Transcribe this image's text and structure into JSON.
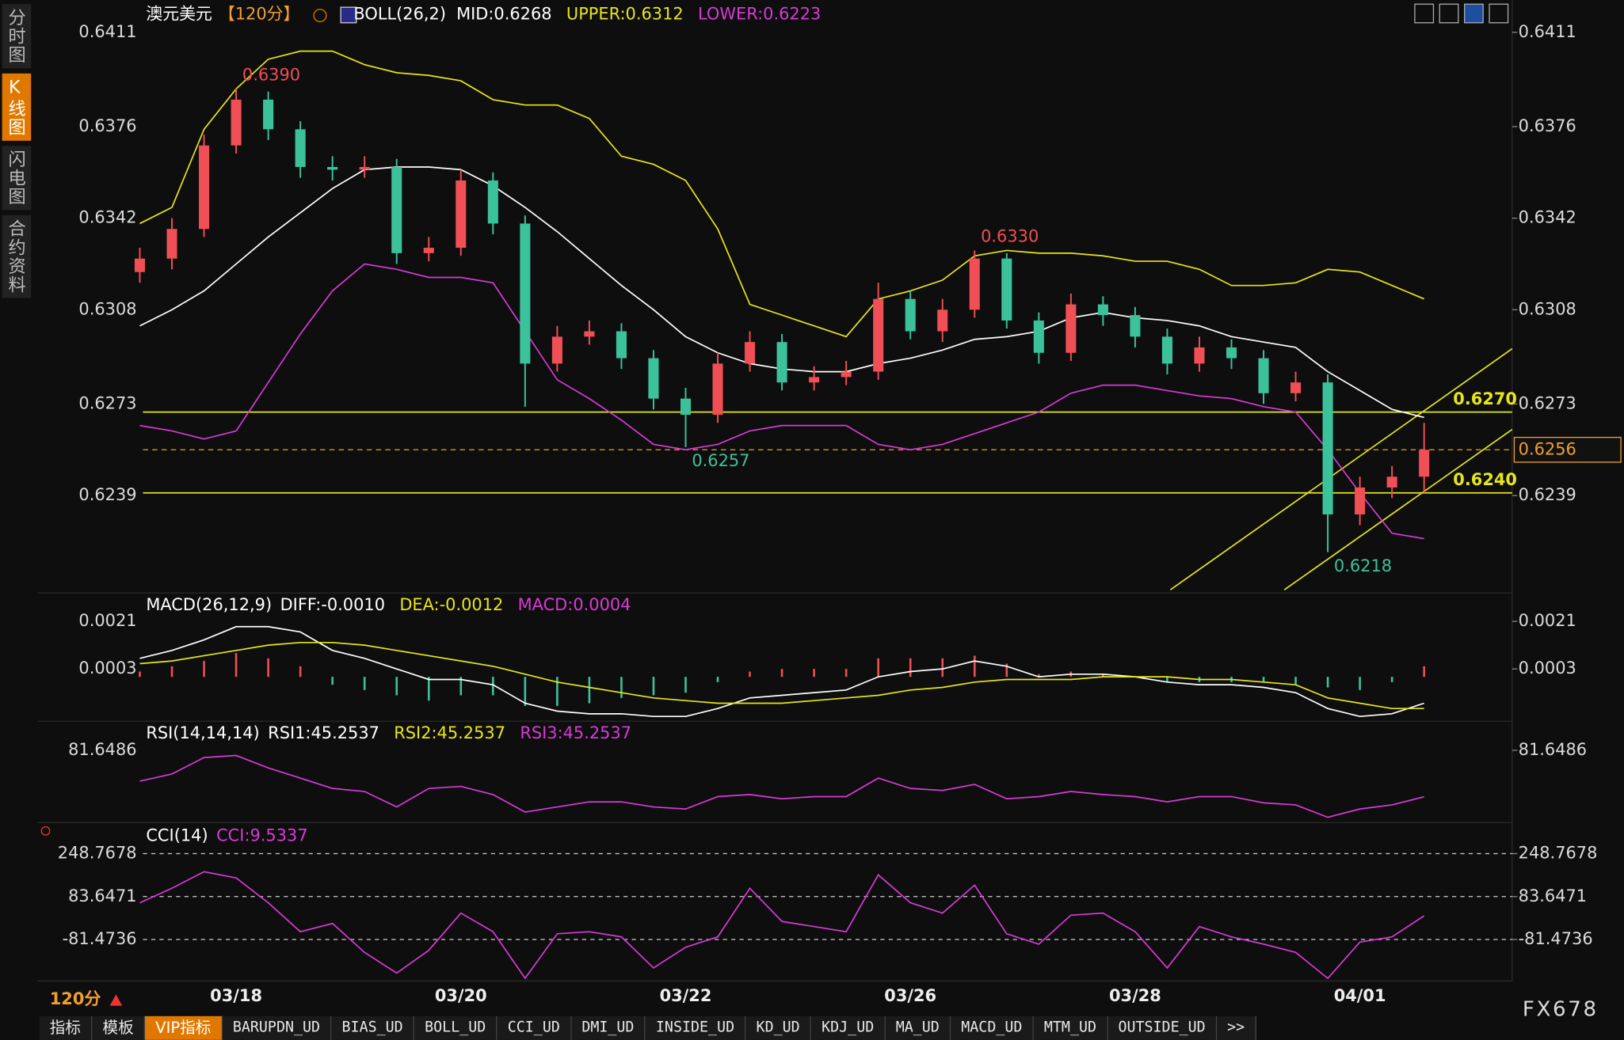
{
  "sidebar": [
    {
      "label": "分时图",
      "active": false
    },
    {
      "label": "K线图",
      "active": true
    },
    {
      "label": "闪电图",
      "active": false
    },
    {
      "label": "合约资料",
      "active": false
    }
  ],
  "period": "120分",
  "brand": "FX678",
  "toolbar": [
    {
      "label": "指标",
      "active": false
    },
    {
      "label": "模板",
      "active": false
    },
    {
      "label": "VIP指标",
      "active": true
    },
    {
      "label": "BARUPDN_UD",
      "active": false
    },
    {
      "label": "BIAS_UD",
      "active": false
    },
    {
      "label": "BOLL_UD",
      "active": false
    },
    {
      "label": "CCI_UD",
      "active": false
    },
    {
      "label": "DMI_UD",
      "active": false
    },
    {
      "label": "INSIDE_UD",
      "active": false
    },
    {
      "label": "KD_UD",
      "active": false
    },
    {
      "label": "KDJ_UD",
      "active": false
    },
    {
      "label": "MA_UD",
      "active": false
    },
    {
      "label": "MACD_UD",
      "active": false
    },
    {
      "label": "MTM_UD",
      "active": false
    },
    {
      "label": "OUTSIDE_UD",
      "active": false
    },
    {
      "label": ">>",
      "active": false
    }
  ],
  "chart_data": [
    {
      "type": "candlestick",
      "title": "澳元美元",
      "period": "【120分】",
      "indicator": "BOLL(26,2)",
      "categories": [
        null,
        null,
        null,
        "03/18",
        null,
        null,
        null,
        null,
        null,
        null,
        "03/20",
        null,
        null,
        null,
        null,
        null,
        null,
        "03/22",
        null,
        null,
        null,
        null,
        null,
        null,
        "03/26",
        null,
        null,
        null,
        null,
        null,
        null,
        "03/28",
        null,
        null,
        null,
        null,
        null,
        null,
        "04/01",
        null,
        null
      ],
      "open": [
        0.6322,
        0.6327,
        0.6338,
        0.6369,
        0.6386,
        0.6375,
        0.6361,
        0.636,
        0.6361,
        0.6329,
        0.6331,
        0.6356,
        0.634,
        0.6288,
        0.6298,
        0.63,
        0.629,
        0.6275,
        0.6269,
        0.6288,
        0.6296,
        0.6281,
        0.6283,
        0.6285,
        0.6312,
        0.63,
        0.6308,
        0.6327,
        0.6304,
        0.6292,
        0.631,
        0.6306,
        0.6298,
        0.6288,
        0.6294,
        0.629,
        0.6277,
        0.6281,
        0.6232,
        0.6242,
        0.6246
      ],
      "high": [
        0.6331,
        0.6342,
        0.6373,
        0.639,
        0.6389,
        0.6378,
        0.6365,
        0.6365,
        0.6364,
        0.6335,
        0.636,
        0.6359,
        0.6343,
        0.6302,
        0.6304,
        0.6303,
        0.6293,
        0.6279,
        0.6292,
        0.63,
        0.6299,
        0.6287,
        0.6289,
        0.6318,
        0.6315,
        0.6312,
        0.633,
        0.6329,
        0.6307,
        0.6314,
        0.6313,
        0.6309,
        0.6301,
        0.6298,
        0.6297,
        0.6293,
        0.6285,
        0.6284,
        0.6246,
        0.625,
        0.6266
      ],
      "low": [
        0.6318,
        0.6323,
        0.6335,
        0.6366,
        0.6371,
        0.6357,
        0.6356,
        0.6357,
        0.6325,
        0.6326,
        0.6328,
        0.6336,
        0.6272,
        0.6285,
        0.6295,
        0.6286,
        0.6271,
        0.6257,
        0.6266,
        0.6285,
        0.6278,
        0.6278,
        0.628,
        0.6282,
        0.6297,
        0.6296,
        0.6305,
        0.6301,
        0.6288,
        0.6289,
        0.6302,
        0.6294,
        0.6284,
        0.6285,
        0.6286,
        0.6273,
        0.6274,
        0.6218,
        0.6228,
        0.6238,
        0.624
      ],
      "close": [
        0.6327,
        0.6338,
        0.6369,
        0.6386,
        0.6375,
        0.6361,
        0.636,
        0.6361,
        0.6329,
        0.6331,
        0.6356,
        0.634,
        0.6288,
        0.6298,
        0.63,
        0.629,
        0.6275,
        0.6269,
        0.6288,
        0.6296,
        0.6281,
        0.6283,
        0.6285,
        0.6312,
        0.63,
        0.6308,
        0.6327,
        0.6304,
        0.6292,
        0.631,
        0.6306,
        0.6298,
        0.6288,
        0.6294,
        0.629,
        0.6277,
        0.6281,
        0.6232,
        0.6242,
        0.6246,
        0.6256
      ],
      "up_color": "#ef4f55",
      "down_color": "#3cc29b",
      "series": [
        {
          "name": "MID:0.6268",
          "color": "#ffffff",
          "values": [
            0.6302,
            0.6308,
            0.6315,
            0.6325,
            0.6335,
            0.6344,
            0.6353,
            0.636,
            0.6361,
            0.6361,
            0.636,
            0.6354,
            0.6346,
            0.6337,
            0.6327,
            0.6317,
            0.6308,
            0.6298,
            0.6292,
            0.6288,
            0.6286,
            0.6285,
            0.6285,
            0.6288,
            0.629,
            0.6293,
            0.6297,
            0.6298,
            0.63,
            0.6305,
            0.6307,
            0.6305,
            0.6304,
            0.6302,
            0.6298,
            0.6296,
            0.6294,
            0.6285,
            0.6278,
            0.6271,
            0.6268
          ]
        },
        {
          "name": "UPPER:0.6312",
          "color": "#e6e61a",
          "values": [
            0.634,
            0.6346,
            0.6375,
            0.639,
            0.6401,
            0.6404,
            0.6404,
            0.6399,
            0.6396,
            0.6395,
            0.6393,
            0.6386,
            0.6384,
            0.6384,
            0.6379,
            0.6365,
            0.6362,
            0.6356,
            0.6338,
            0.631,
            0.6306,
            0.6302,
            0.6298,
            0.6312,
            0.6315,
            0.6319,
            0.6328,
            0.633,
            0.6329,
            0.6329,
            0.6328,
            0.6326,
            0.6326,
            0.6323,
            0.6317,
            0.6317,
            0.6318,
            0.6323,
            0.6322,
            0.6317,
            0.6312
          ]
        },
        {
          "name": "LOWER:0.6223",
          "color": "#d63bd6",
          "values": [
            0.6265,
            0.6263,
            0.626,
            0.6263,
            0.6281,
            0.6299,
            0.6315,
            0.6325,
            0.6323,
            0.632,
            0.632,
            0.6318,
            0.63,
            0.6282,
            0.6275,
            0.6267,
            0.6258,
            0.6256,
            0.6258,
            0.6263,
            0.6265,
            0.6265,
            0.6265,
            0.6258,
            0.6256,
            0.6258,
            0.6262,
            0.6266,
            0.627,
            0.6277,
            0.628,
            0.628,
            0.6278,
            0.6276,
            0.6275,
            0.6272,
            0.627,
            0.6256,
            0.624,
            0.6225,
            0.6223
          ]
        }
      ],
      "ylim": [
        0.6204,
        0.6423
      ],
      "yticks": [
        0.6411,
        0.6376,
        0.6342,
        0.6308,
        0.6273,
        0.6239
      ],
      "grid": false,
      "levels": [
        {
          "value": 0.627,
          "label": "0.6270"
        },
        {
          "value": 0.624,
          "label": "0.6240"
        }
      ],
      "level_color": "#e6e61a",
      "last": {
        "value": 0.6256,
        "label": "0.6256"
      },
      "last_color": "#f0a030",
      "annotations": [
        {
          "value": 0.639,
          "label": "0.6390"
        },
        {
          "value": 0.633,
          "label": "0.6330"
        },
        {
          "value": 0.6257,
          "label": "0.6257"
        },
        {
          "value": 0.6218,
          "label": "0.6218"
        }
      ]
    },
    {
      "type": "macd",
      "title": "MACD(26,12,9)",
      "series": [
        {
          "name": "DIFF:-0.0010",
          "color": "#ffffff",
          "values": [
            0.0007,
            0.001,
            0.0014,
            0.0019,
            0.0019,
            0.0017,
            0.001,
            0.0007,
            0.0003,
            -0.0001,
            -0.0001,
            -0.0003,
            -0.001,
            -0.0013,
            -0.0014,
            -0.0014,
            -0.0015,
            -0.0015,
            -0.0012,
            -0.0008,
            -0.0007,
            -0.0006,
            -0.0005,
            0,
            0.0002,
            0.0003,
            0.0006,
            0.0004,
            0,
            0.0001,
            0.0001,
            0,
            -0.0002,
            -0.0003,
            -0.0003,
            -0.0004,
            -0.0006,
            -0.0012,
            -0.0015,
            -0.0014,
            -0.001
          ]
        },
        {
          "name": "DEA:-0.0012",
          "color": "#e6e61a",
          "values": [
            0.0005,
            0.0006,
            0.0008,
            0.001,
            0.0012,
            0.0013,
            0.0013,
            0.0012,
            0.001,
            0.0008,
            0.0006,
            0.0004,
            0.0001,
            -0.0002,
            -0.0004,
            -0.0006,
            -0.0008,
            -0.0009,
            -0.001,
            -0.001,
            -0.001,
            -0.0009,
            -0.0008,
            -0.0007,
            -0.0005,
            -0.0004,
            -0.0002,
            -0.0001,
            -0.0001,
            -0.0001,
            0,
            0,
            0,
            -0.0001,
            -0.0001,
            -0.0002,
            -0.0003,
            -0.0008,
            -0.001,
            -0.0012,
            -0.0012
          ]
        }
      ],
      "histogram": {
        "name": "MACD:0.0004",
        "color": "#d63bd6",
        "up_color": "#ef4f55",
        "down_color": "#3cc29b",
        "values": [
          0.0002,
          0.0004,
          0.0006,
          0.0009,
          0.0007,
          0.0004,
          -0.0003,
          -0.0005,
          -0.0007,
          -0.0009,
          -0.0007,
          -0.0007,
          -0.0011,
          -0.0011,
          -0.001,
          -0.0008,
          -0.0007,
          -0.0006,
          -0.0002,
          0.0002,
          0.0003,
          0.0003,
          0.0003,
          0.0007,
          0.0007,
          0.0007,
          0.0008,
          0.0005,
          0.0001,
          0.0002,
          0.0001,
          0,
          -0.0002,
          -0.0002,
          -0.0002,
          -0.0002,
          -0.0003,
          -0.0004,
          -0.0005,
          -0.0002,
          0.0004
        ]
      },
      "ylim": [
        -0.0018,
        0.0031
      ],
      "yticks": [
        0.0021,
        0.0003
      ],
      "grid": false
    },
    {
      "type": "line",
      "title": "RSI(14,14,14)",
      "legend": [
        {
          "label": "RSI1:45.2537",
          "color": "#ffffff"
        },
        {
          "label": "RSI2:45.2537",
          "color": "#e6e61a"
        },
        {
          "label": "RSI3:45.2537",
          "color": "#d63bd6"
        }
      ],
      "series": [
        {
          "color": "#d63bd6",
          "values": [
            57.5,
            63.1,
            76,
            77.6,
            67.9,
            59.9,
            51.8,
            49.4,
            37.3,
            51.8,
            53.4,
            47,
            33.3,
            37.3,
            41.3,
            41.3,
            37.3,
            35.7,
            45.4,
            47,
            43.7,
            45.4,
            45.4,
            59.9,
            51.8,
            50.2,
            55,
            43.7,
            45.4,
            49.4,
            47,
            45.4,
            41.3,
            45.4,
            45.4,
            40.5,
            38.9,
            29.2,
            35.7,
            38.9,
            45.2537
          ]
        }
      ],
      "ylim": [
        25,
        102
      ],
      "yticks": [
        81.6486
      ],
      "grid": false
    },
    {
      "type": "line",
      "title": "CCI(14)",
      "legend": [
        {
          "label": "CCI:9.5337",
          "color": "#d63bd6"
        }
      ],
      "series": [
        {
          "color": "#d63bd6",
          "values": [
            59.8,
            115.5,
            179.2,
            155.3,
            59.8,
            -51.6,
            -19.8,
            -131.2,
            -210.8,
            -123.3,
            20,
            -51.6,
            -230.7,
            -59.6,
            -51.6,
            -71.5,
            -190.9,
            -111.3,
            -71.5,
            115.5,
            -11.9,
            -31.8,
            -51.6,
            167.2,
            59.8,
            20,
            127.4,
            -59.6,
            -99.4,
            12,
            20,
            -51.6,
            -190.9,
            -31.8,
            -71.5,
            -99.4,
            -131.2,
            -230.7,
            -91.4,
            -71.5,
            9.5337
          ]
        }
      ],
      "ylim": [
        -249,
        348
      ],
      "yticks": [
        248.7678,
        83.6471,
        -81.4736
      ],
      "grid": "dashed"
    }
  ]
}
